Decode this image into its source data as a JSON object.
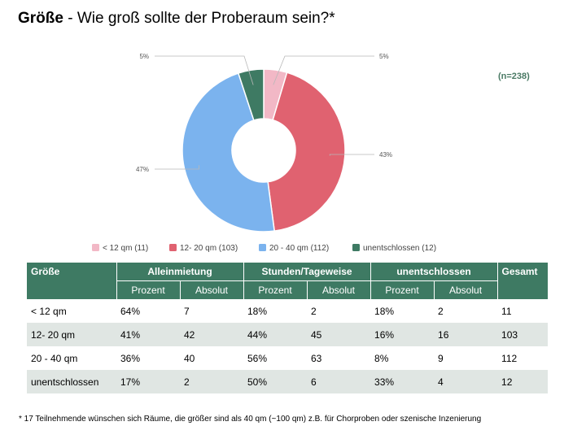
{
  "title": {
    "bold": "Größe",
    "rest": " - Wie groß sollte der Proberaum sein?*"
  },
  "n_label": "(n=238)",
  "colors": {
    "slice_lt12": "#f2b8c6",
    "slice_12_20": "#e06270",
    "slice_20_40": "#7bb3ee",
    "slice_unent": "#3e7a63",
    "header_bg": "#3e7a63",
    "row_alt": "#e0e6e3"
  },
  "chart_data": {
    "type": "pie",
    "donut": true,
    "title": "Größe - Wie groß sollte der Proberaum sein?*",
    "categories": [
      "< 12 qm (11)",
      "12- 20 qm (103)",
      "20 - 40 qm (112)",
      "unentschlossen (12)"
    ],
    "values": [
      11,
      103,
      112,
      12
    ],
    "slice_labels": [
      "5%",
      "43%",
      "47%",
      "5%"
    ],
    "legend_position": "bottom"
  },
  "table": {
    "headers": {
      "groesse": "Größe",
      "allein": "Alleinmietung",
      "stunden": "Stunden/Tageweise",
      "unent": "unentschlossen",
      "gesamt": "Gesamt",
      "prozent": "Prozent",
      "absolut": "Absolut"
    },
    "rows": [
      [
        "< 12 qm",
        "64%",
        "7",
        "18%",
        "2",
        "18%",
        "2",
        "11"
      ],
      [
        "12- 20 qm",
        "41%",
        "42",
        "44%",
        "45",
        "16%",
        "16",
        "103"
      ],
      [
        "20 - 40 qm",
        "36%",
        "40",
        "56%",
        "63",
        "8%",
        "9",
        "112"
      ],
      [
        "unentschlossen",
        "17%",
        "2",
        "50%",
        "6",
        "33%",
        "4",
        "12"
      ]
    ]
  },
  "footnote": "* 17 Teilnehmende wünschen sich Räume, die größer sind als 40 qm (~100 qm) z.B. für Chorproben oder szenische Inzenierung"
}
